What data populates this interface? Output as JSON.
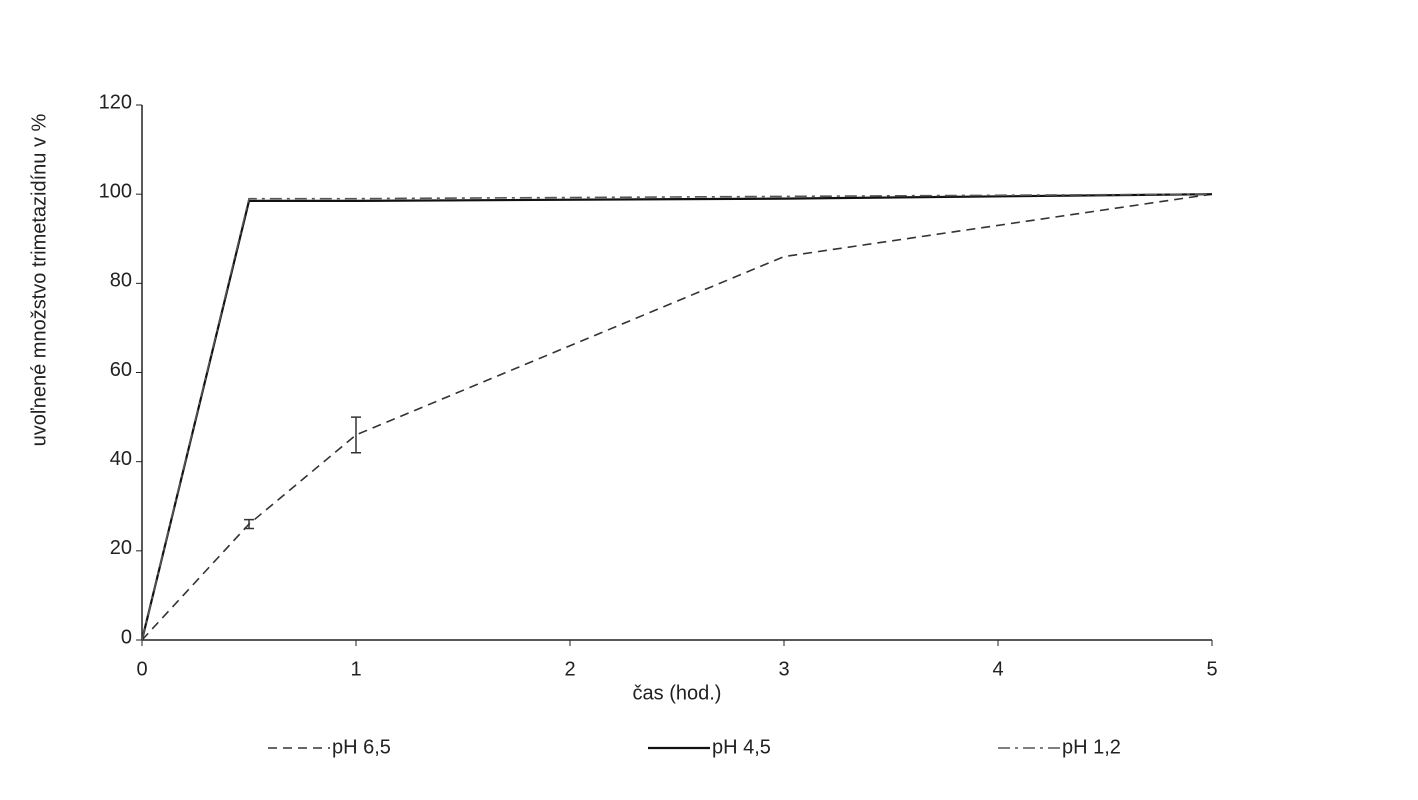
{
  "chart_data": {
    "type": "line",
    "x_label": "čas (hod.)",
    "y_label": "uvoľnené množstvo trimetazidínu v %",
    "x": [
      0,
      0.5,
      1,
      3,
      5
    ],
    "series": [
      {
        "name": "pH 6,5",
        "color": "#333333",
        "dash": "dashed",
        "values": [
          0,
          26,
          46,
          86,
          100
        ],
        "errors": [
          null,
          1,
          4,
          null,
          null
        ]
      },
      {
        "name": "pH 4,5",
        "color": "#111111",
        "dash": "solid",
        "values": [
          0,
          98.5,
          98.5,
          99,
          100
        ]
      },
      {
        "name": "pH 1,2",
        "color": "#555555",
        "dash": "dashdot",
        "values": [
          0,
          99,
          99,
          99.5,
          100
        ]
      }
    ],
    "xlim": [
      0,
      5
    ],
    "xticks": [
      0,
      1,
      2,
      3,
      4,
      5
    ],
    "ylim": [
      0,
      120
    ],
    "yticks": [
      0,
      20,
      40,
      60,
      80,
      100,
      120
    ],
    "grid": false,
    "legend": "bottom"
  }
}
